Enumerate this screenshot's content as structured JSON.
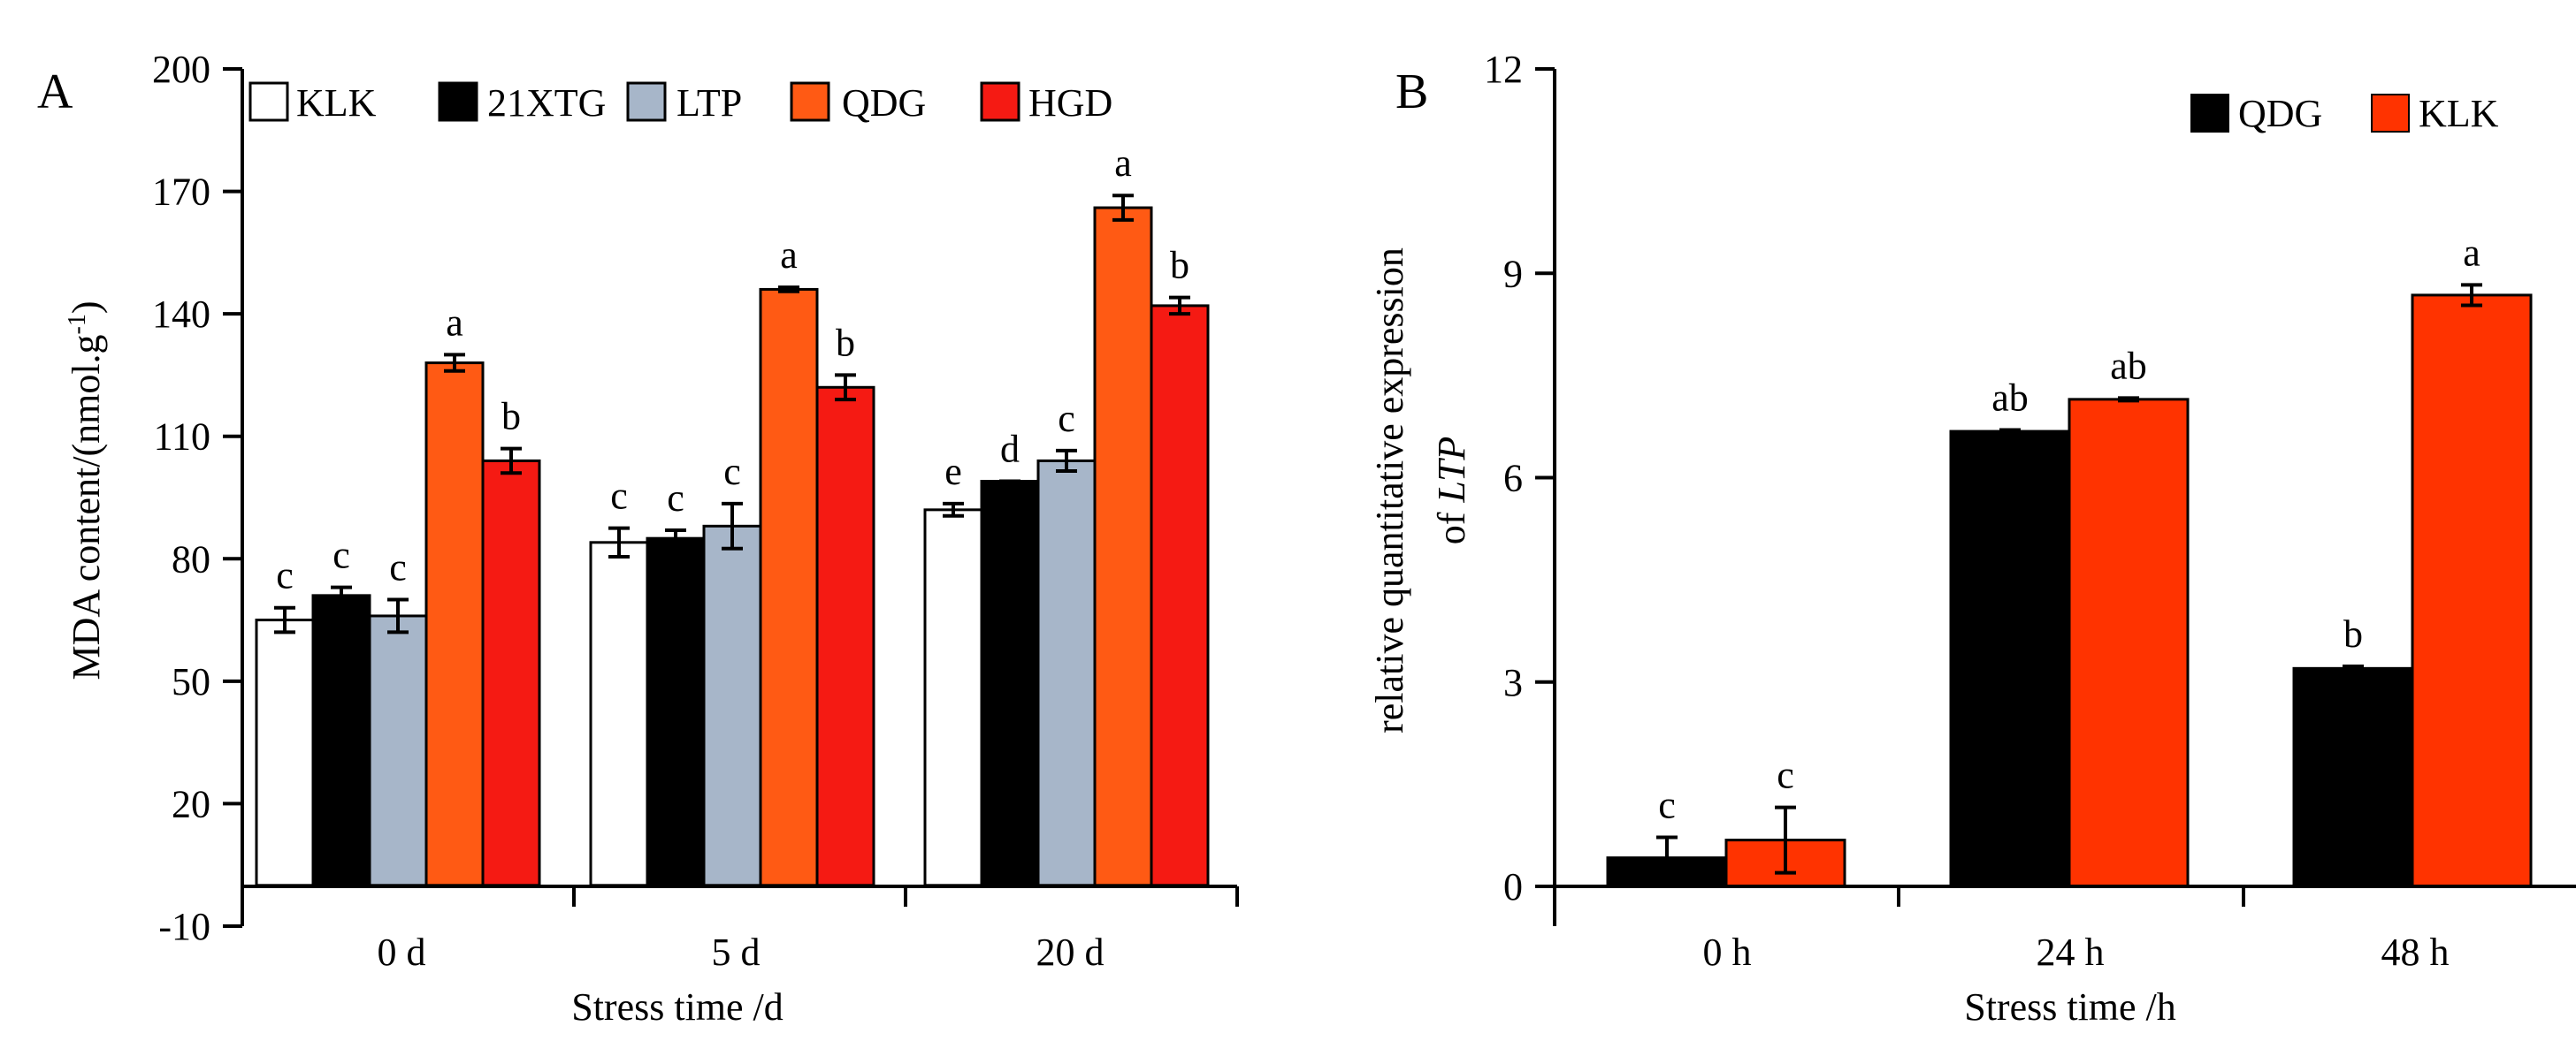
{
  "chart_data": [
    {
      "type": "bar",
      "panel_label": "A",
      "categories": [
        "0 d",
        "5 d",
        "20 d"
      ],
      "xlabel": "Stress time /d",
      "ylabel": "MDA content/(nmol.g",
      "ylabel_sup": "-1",
      "ylabel_end": ")",
      "ylim": [
        -10,
        200
      ],
      "yticks": [
        -10,
        20,
        50,
        80,
        110,
        140,
        170,
        200
      ],
      "ytick_labels": [
        "-10",
        "20",
        "50",
        "80",
        "110",
        "140",
        "170",
        "200"
      ],
      "grid": false,
      "legend_position": "top",
      "series": [
        {
          "name": "KLK",
          "color": "#ffffff",
          "values": [
            65,
            84,
            92
          ],
          "errors": [
            3,
            3.5,
            1.5
          ],
          "labels": [
            "c",
            "c",
            "e"
          ]
        },
        {
          "name": "21XTG",
          "color": "#000000",
          "values": [
            71,
            85,
            99
          ],
          "errors": [
            2,
            2,
            0
          ],
          "labels": [
            "c",
            "c",
            "d"
          ]
        },
        {
          "name": "LTP",
          "color": "#a7b6c9",
          "values": [
            66,
            88,
            104
          ],
          "errors": [
            4,
            5.5,
            2.5
          ],
          "labels": [
            "c",
            "c",
            "c"
          ]
        },
        {
          "name": "QDG",
          "color": "#ff5a14",
          "values": [
            128,
            146,
            166
          ],
          "errors": [
            2,
            0.5,
            3
          ],
          "labels": [
            "a",
            "a",
            "a"
          ]
        },
        {
          "name": "HGD",
          "color": "#f51a13",
          "values": [
            104,
            122,
            142
          ],
          "errors": [
            3,
            3,
            2
          ],
          "labels": [
            "b",
            "b",
            "b"
          ]
        }
      ]
    },
    {
      "type": "bar",
      "panel_label": "B",
      "categories": [
        "0 h",
        "24 h",
        "48 h"
      ],
      "xlabel": "Stress time /h",
      "ylabel_line1": "relative quantitative expression",
      "ylabel_line2_prefix": "of ",
      "ylabel_line2_italic": "LTP",
      "ylim": [
        0,
        12
      ],
      "yticks": [
        0,
        3,
        6,
        9,
        12
      ],
      "ytick_labels": [
        "0",
        "3",
        "6",
        "9",
        "12"
      ],
      "grid": false,
      "legend_position": "top-right",
      "series": [
        {
          "name": "QDG",
          "color": "#000000",
          "values": [
            0.42,
            6.68,
            3.2
          ],
          "errors": [
            0.3,
            0.02,
            0.03
          ],
          "labels": [
            "c",
            "ab",
            "b"
          ]
        },
        {
          "name": "KLK",
          "color": "#ff3300",
          "values": [
            0.68,
            7.15,
            8.68
          ],
          "errors": [
            0.48,
            0.02,
            0.15
          ],
          "labels": [
            "c",
            "ab",
            "a"
          ]
        }
      ]
    }
  ]
}
